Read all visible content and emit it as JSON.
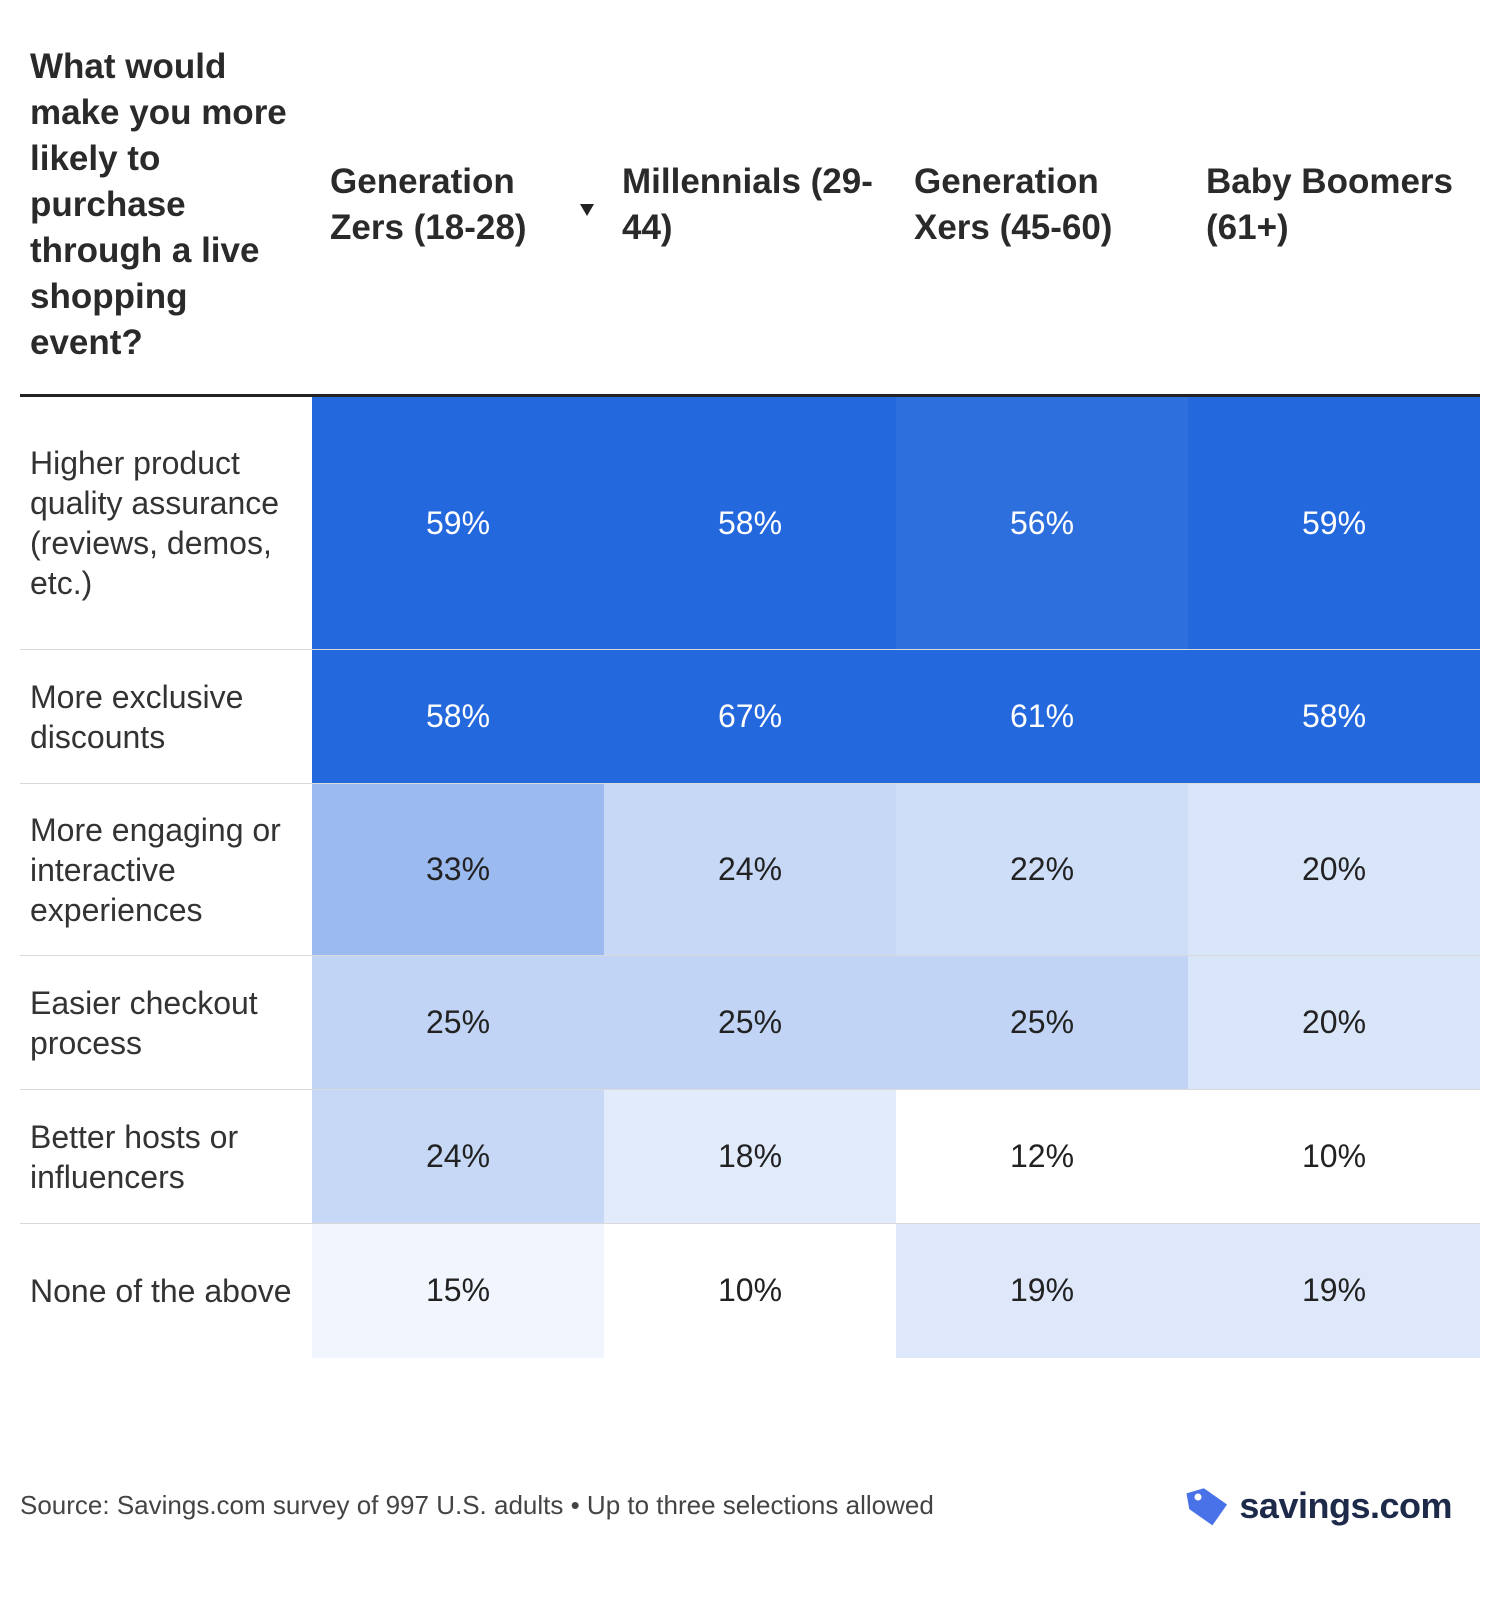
{
  "chart_data": {
    "type": "table",
    "title": "What would make you more likely to purchase through a live shopping event?",
    "columns": [
      "Generation Zers (18-28)",
      "Millennials (29-44)",
      "Generation Xers (45-60)",
      "Baby Boomers (61+)"
    ],
    "sorted_column": 1,
    "rows": [
      {
        "label": "Higher product quality assurance (reviews, demos, etc.)",
        "values": [
          59,
          58,
          56,
          59
        ]
      },
      {
        "label": "More exclusive discounts",
        "values": [
          58,
          67,
          61,
          58
        ]
      },
      {
        "label": "More engaging or interactive experiences",
        "values": [
          33,
          24,
          22,
          20
        ]
      },
      {
        "label": "Easier checkout process",
        "values": [
          25,
          25,
          25,
          20
        ]
      },
      {
        "label": "Better hosts or influencers",
        "values": [
          24,
          18,
          12,
          10
        ]
      },
      {
        "label": "None of the above",
        "values": [
          15,
          10,
          19,
          19
        ]
      }
    ],
    "value_suffix": "%",
    "heat_range": [
      12,
      58
    ],
    "colors": {
      "low": "#ffffff",
      "high": "#2468dd",
      "text_dark": "#222222",
      "text_light": "#ffffff"
    }
  },
  "footer": {
    "source": "Source: Savings.com survey of 997 U.S. adults • Up to three selections allowed"
  },
  "logo": {
    "text": "savings.com",
    "icon": "price-tag-icon",
    "color": "#4a72e8"
  }
}
